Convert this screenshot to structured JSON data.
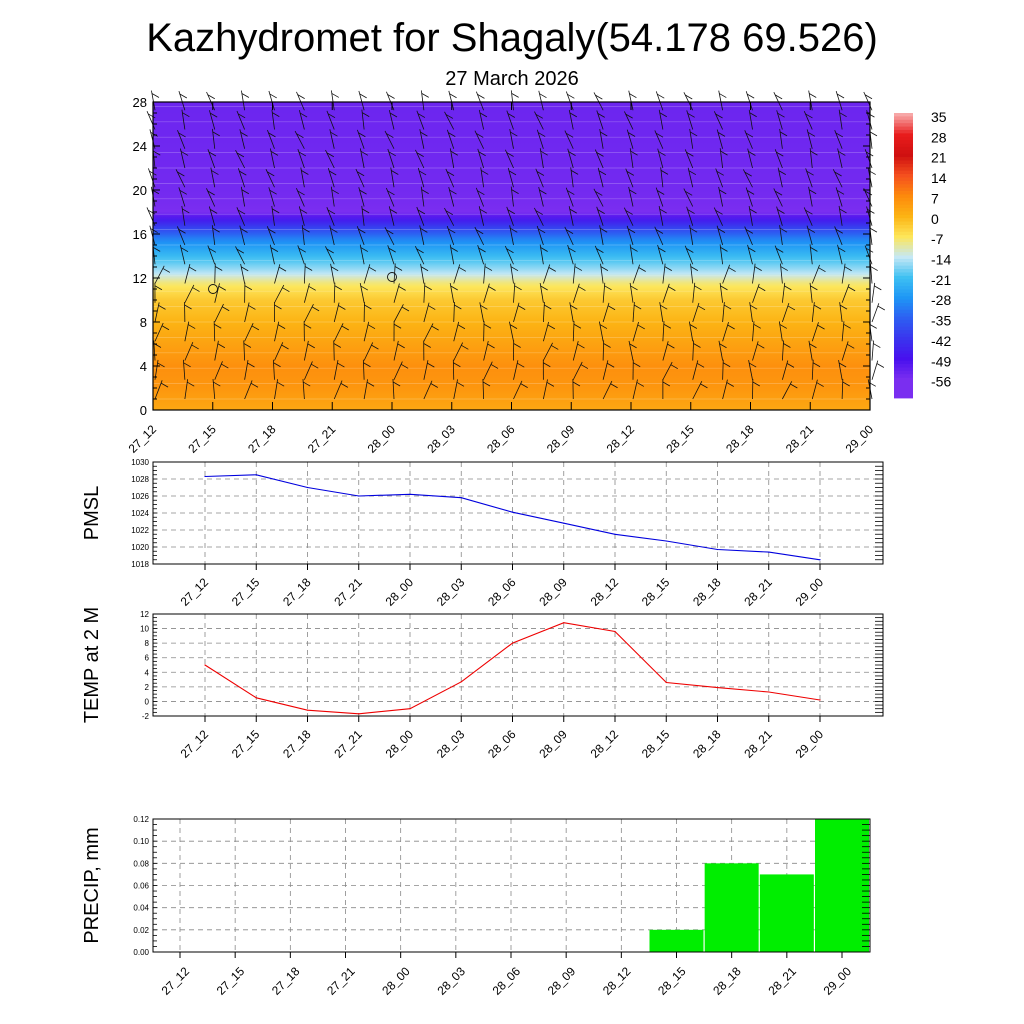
{
  "title": "Kazhydromet for Shagaly(54.178 69.526)",
  "subtitle": "27 March 2026",
  "colors": {
    "pmsl_line": "#0000dd",
    "temp_line": "#ee0000",
    "precip_bar": "#00ee00",
    "grid": "#888888"
  },
  "chart_data": [
    {
      "type": "heatmap",
      "name": "cross-section",
      "title": "",
      "xlabel": "",
      "ylabel": "",
      "x_tick_labels": [
        "27_12",
        "27_15",
        "27_18",
        "27_21",
        "28_00",
        "28_03",
        "28_06",
        "28_09",
        "28_12",
        "28_15",
        "28_18",
        "28_21",
        "29_00"
      ],
      "ylim": [
        0,
        28
      ],
      "y_ticks": [
        0,
        4,
        8,
        12,
        16,
        20,
        24,
        28
      ],
      "y_tick_labels": [
        "0",
        "4",
        "8",
        "12",
        "16",
        "20",
        "24",
        "28"
      ],
      "color_levels": [
        {
          "value": 35,
          "color": "#f7a7a7"
        },
        {
          "value": 28,
          "color": "#e81c1c"
        },
        {
          "value": 21,
          "color": "#cf1010"
        },
        {
          "value": 14,
          "color": "#f5501e"
        },
        {
          "value": 7,
          "color": "#fd8a0c"
        },
        {
          "value": 0,
          "color": "#fcb414"
        },
        {
          "value": -7,
          "color": "#fde65a"
        },
        {
          "value": -14,
          "color": "#c5e8f5"
        },
        {
          "value": -21,
          "color": "#3ec0f2"
        },
        {
          "value": -28,
          "color": "#1e96f5"
        },
        {
          "value": -35,
          "color": "#2d5ff2"
        },
        {
          "value": -42,
          "color": "#3a35ee"
        },
        {
          "value": -49,
          "color": "#4810ee"
        },
        {
          "value": -56,
          "color": "#7a2ef0"
        }
      ],
      "colorbar_labels": [
        "35",
        "28",
        "21",
        "14",
        "7",
        "0",
        "-7",
        "-14",
        "-21",
        "-28",
        "-35",
        "-42",
        "-49",
        "-56"
      ],
      "profile": [
        {
          "height": 0,
          "temp": 2
        },
        {
          "height": 2,
          "temp": 5
        },
        {
          "height": 4,
          "temp": 6
        },
        {
          "height": 6,
          "temp": 3
        },
        {
          "height": 8,
          "temp": 0
        },
        {
          "height": 10,
          "temp": -3
        },
        {
          "height": 11.5,
          "temp": -8
        },
        {
          "height": 12.5,
          "temp": -15
        },
        {
          "height": 14,
          "temp": -22
        },
        {
          "height": 15.5,
          "temp": -30
        },
        {
          "height": 17,
          "temp": -44
        },
        {
          "height": 18,
          "temp": -56
        },
        {
          "height": 20,
          "temp": -55
        },
        {
          "height": 28,
          "temp": -54
        }
      ]
    },
    {
      "type": "line",
      "name": "pmsl",
      "ylabel": "PMSL",
      "x_tick_labels": [
        "27_12",
        "27_15",
        "27_18",
        "27_21",
        "28_00",
        "28_03",
        "28_06",
        "28_09",
        "28_12",
        "28_15",
        "28_18",
        "28_21",
        "29_00"
      ],
      "values": [
        1028.3,
        1028.5,
        1027.0,
        1026.0,
        1026.2,
        1025.8,
        1024.1,
        1022.8,
        1021.5,
        1020.7,
        1019.7,
        1019.4,
        1018.5
      ],
      "ylim": [
        1018,
        1030
      ],
      "y_ticks": [
        1018,
        1020,
        1022,
        1024,
        1026,
        1028,
        1030
      ],
      "y_tick_labels": [
        "1018",
        "1020",
        "1022",
        "1024",
        "1026",
        "1028",
        "1030"
      ]
    },
    {
      "type": "line",
      "name": "temp",
      "ylabel": "TEMP at 2 M",
      "x_tick_labels": [
        "27_12",
        "27_15",
        "27_18",
        "27_21",
        "28_00",
        "28_03",
        "28_06",
        "28_09",
        "28_12",
        "28_15",
        "28_18",
        "28_21",
        "29_00"
      ],
      "values": [
        5.0,
        0.5,
        -1.2,
        -1.7,
        -1.0,
        2.7,
        8.0,
        10.8,
        9.6,
        2.6,
        1.9,
        1.3,
        0.2
      ],
      "ylim": [
        -2,
        12
      ],
      "y_ticks": [
        -2,
        0,
        2,
        4,
        6,
        8,
        10,
        12
      ],
      "y_tick_labels": [
        "-2",
        "0",
        "2",
        "4",
        "6",
        "8",
        "10",
        "12"
      ]
    },
    {
      "type": "bar",
      "name": "precip",
      "ylabel": "PRECIP, mm",
      "categories": [
        "27_12",
        "27_15",
        "27_18",
        "27_21",
        "28_00",
        "28_03",
        "28_06",
        "28_09",
        "28_12",
        "28_15",
        "28_18",
        "28_21",
        "29_00"
      ],
      "values": [
        0,
        0,
        0,
        0,
        0,
        0,
        0,
        0,
        0,
        0.02,
        0.08,
        0.07,
        0.12
      ],
      "ylim": [
        0,
        0.12
      ],
      "y_ticks": [
        0,
        0.02,
        0.04,
        0.06,
        0.08,
        0.1,
        0.12
      ],
      "y_tick_labels": [
        "0.00",
        "0.02",
        "0.04",
        "0.06",
        "0.08",
        "0.10",
        "0.12"
      ]
    }
  ]
}
